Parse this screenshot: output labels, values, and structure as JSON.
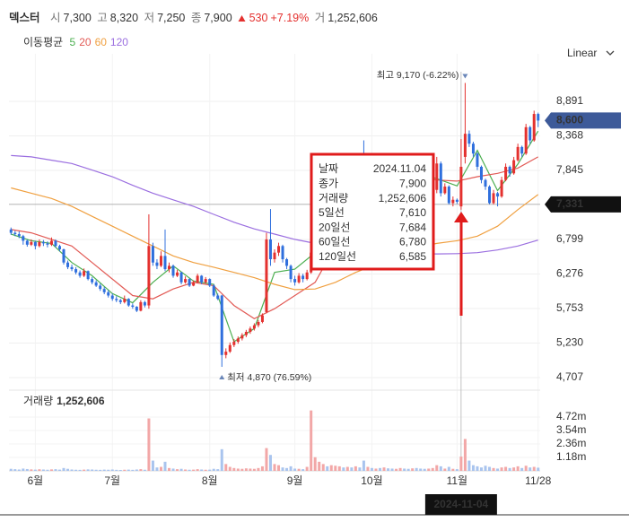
{
  "header": {
    "name": "덱스터",
    "open_label": "시",
    "open": "7,300",
    "high_label": "고",
    "high": "8,320",
    "low_label": "저",
    "low": "7,250",
    "close_label": "종",
    "close": "7,900",
    "change": "530",
    "change_pct": "+7.19%",
    "volume_label": "거",
    "volume": "1,252,606"
  },
  "controls": {
    "scale": "Linear"
  },
  "chart_data": {
    "type": "candlestick",
    "ma_legend_title": "이동평균",
    "up_color": "#e4312f",
    "down_color": "#2f6fdd",
    "vol_up_color": "#f2a7a7",
    "vol_down_color": "#a9c4ee",
    "ylim": [
      4585,
      9611
    ],
    "yticks": [
      {
        "value": 8891,
        "label": "8,891"
      },
      {
        "value": 8368,
        "label": "8,368"
      },
      {
        "value": 7845,
        "label": "7,845"
      },
      {
        "value": 6799,
        "label": "6,799"
      },
      {
        "value": 6276,
        "label": "6,276"
      },
      {
        "value": 5753,
        "label": "5,753"
      },
      {
        "value": 5230,
        "label": "5,230"
      },
      {
        "value": 4707,
        "label": "4,707"
      }
    ],
    "vlim": [
      0,
      7080000
    ],
    "vticks": [
      {
        "value": 4720000,
        "label": "4.72m"
      },
      {
        "value": 3540000,
        "label": "3.54m"
      },
      {
        "value": 2360000,
        "label": "2.36m"
      },
      {
        "value": 1180000,
        "label": "1.18m"
      }
    ],
    "grid": true,
    "categories": [
      null,
      null,
      null,
      null,
      null,
      null,
      "6월",
      null,
      null,
      null,
      null,
      null,
      null,
      null,
      null,
      null,
      null,
      null,
      null,
      null,
      null,
      null,
      null,
      null,
      null,
      "7월",
      null,
      null,
      null,
      null,
      null,
      null,
      null,
      null,
      null,
      null,
      null,
      null,
      null,
      null,
      null,
      null,
      null,
      null,
      null,
      null,
      null,
      null,
      null,
      "8월",
      null,
      null,
      null,
      null,
      null,
      null,
      null,
      null,
      null,
      null,
      null,
      null,
      null,
      null,
      null,
      null,
      null,
      null,
      null,
      null,
      "9월",
      null,
      null,
      null,
      null,
      null,
      null,
      null,
      null,
      null,
      null,
      null,
      null,
      null,
      null,
      null,
      null,
      null,
      null,
      "10월",
      null,
      null,
      null,
      null,
      null,
      null,
      null,
      null,
      null,
      null,
      null,
      null,
      null,
      null,
      null,
      null,
      null,
      null,
      null,
      null,
      "11월",
      null,
      null,
      null,
      null,
      null,
      null,
      null,
      null,
      null,
      null,
      null,
      null,
      null,
      null,
      null,
      null,
      null,
      null,
      null,
      "11/28"
    ],
    "candles": [
      [
        6950,
        6980,
        6870,
        6900
      ],
      [
        6900,
        6930,
        6850,
        6880
      ],
      [
        6880,
        6920,
        6820,
        6850
      ],
      [
        6850,
        6870,
        6720,
        6780
      ],
      [
        6780,
        6800,
        6690,
        6720
      ],
      [
        6720,
        6800,
        6700,
        6760
      ],
      [
        6760,
        6780,
        6650,
        6700
      ],
      [
        6700,
        6800,
        6680,
        6760
      ],
      [
        6760,
        6790,
        6700,
        6740
      ],
      [
        6740,
        6770,
        6680,
        6720
      ],
      [
        6720,
        6830,
        6700,
        6780
      ],
      [
        6780,
        6800,
        6680,
        6700
      ],
      [
        6700,
        6720,
        6620,
        6650
      ],
      [
        6650,
        6660,
        6420,
        6450
      ],
      [
        6450,
        6480,
        6350,
        6380
      ],
      [
        6380,
        6420,
        6320,
        6350
      ],
      [
        6350,
        6380,
        6270,
        6300
      ],
      [
        6300,
        6330,
        6220,
        6250
      ],
      [
        6250,
        6360,
        6230,
        6320
      ],
      [
        6320,
        6330,
        6180,
        6200
      ],
      [
        6200,
        6230,
        6120,
        6150
      ],
      [
        6150,
        6180,
        6080,
        6100
      ],
      [
        6100,
        6130,
        6020,
        6050
      ],
      [
        6050,
        6080,
        5970,
        6000
      ],
      [
        6000,
        6030,
        5920,
        5950
      ],
      [
        5950,
        5980,
        5870,
        5900
      ],
      [
        5900,
        5940,
        5850,
        5880
      ],
      [
        5880,
        5900,
        5820,
        5850
      ],
      [
        5850,
        5950,
        5830,
        5900
      ],
      [
        5900,
        5910,
        5780,
        5800
      ],
      [
        5800,
        5830,
        5750,
        5780
      ],
      [
        5780,
        5790,
        5700,
        5720
      ],
      [
        5720,
        5880,
        5710,
        5850
      ],
      [
        5850,
        5870,
        5770,
        5800
      ],
      [
        5800,
        7180,
        5750,
        6700
      ],
      [
        6700,
        6750,
        6400,
        6450
      ],
      [
        6450,
        6500,
        6350,
        6400
      ],
      [
        6400,
        6620,
        6380,
        6550
      ],
      [
        6550,
        6950,
        6320,
        6350
      ],
      [
        6350,
        6450,
        6300,
        6400
      ],
      [
        6400,
        6420,
        6220,
        6250
      ],
      [
        6250,
        6340,
        6230,
        6300
      ],
      [
        6300,
        6310,
        6120,
        6150
      ],
      [
        6150,
        6240,
        6130,
        6200
      ],
      [
        6200,
        6210,
        6080,
        6100
      ],
      [
        6100,
        6180,
        6090,
        6150
      ],
      [
        6150,
        6280,
        6140,
        6250
      ],
      [
        6250,
        6260,
        6120,
        6150
      ],
      [
        6150,
        6230,
        6130,
        6200
      ],
      [
        6200,
        6210,
        6080,
        6100
      ],
      [
        6100,
        6120,
        5930,
        5950
      ],
      [
        5950,
        5980,
        5880,
        5900
      ],
      [
        5950,
        5960,
        4870,
        5050
      ],
      [
        5050,
        5150,
        5000,
        5100
      ],
      [
        5100,
        5240,
        5080,
        5200
      ],
      [
        5200,
        5290,
        5170,
        5250
      ],
      [
        5250,
        5330,
        5220,
        5300
      ],
      [
        5300,
        5380,
        5270,
        5350
      ],
      [
        5350,
        5430,
        5320,
        5400
      ],
      [
        5400,
        5480,
        5370,
        5450
      ],
      [
        5450,
        5530,
        5420,
        5500
      ],
      [
        5500,
        5580,
        5470,
        5550
      ],
      [
        5550,
        5680,
        5530,
        5650
      ],
      [
        5700,
        6900,
        5680,
        6800
      ],
      [
        6800,
        7260,
        6400,
        6500
      ],
      [
        6500,
        6650,
        6450,
        6600
      ],
      [
        6600,
        6750,
        6550,
        6700
      ],
      [
        6700,
        6720,
        6450,
        6500
      ],
      [
        6500,
        6520,
        6350,
        6400
      ],
      [
        6400,
        6420,
        6150,
        6200
      ],
      [
        6200,
        6250,
        6100,
        6150
      ],
      [
        6150,
        6290,
        6130,
        6250
      ],
      [
        6250,
        6280,
        6150,
        6200
      ],
      [
        6200,
        6340,
        6180,
        6300
      ],
      [
        6300,
        6650,
        6280,
        6600
      ],
      [
        6600,
        6950,
        6580,
        6900
      ],
      [
        6900,
        7150,
        6870,
        7100
      ],
      [
        7100,
        7350,
        7080,
        7300
      ],
      [
        7300,
        7320,
        7150,
        7200
      ],
      [
        7200,
        7450,
        7180,
        7400
      ],
      [
        7400,
        7550,
        7380,
        7500
      ],
      [
        7500,
        7650,
        7480,
        7600
      ],
      [
        7600,
        7620,
        7400,
        7450
      ],
      [
        7450,
        7750,
        7430,
        7700
      ],
      [
        7700,
        7720,
        7600,
        7650
      ],
      [
        7650,
        7850,
        7630,
        7800
      ],
      [
        7800,
        7820,
        7700,
        7750
      ],
      [
        7750,
        8300,
        7560,
        7600
      ],
      [
        7600,
        7750,
        7580,
        7700
      ],
      [
        7700,
        7720,
        7600,
        7650
      ],
      [
        7650,
        7850,
        7630,
        7800
      ],
      [
        7800,
        7820,
        7700,
        7750
      ],
      [
        7750,
        7950,
        7730,
        7900
      ],
      [
        7900,
        7920,
        7800,
        7850
      ],
      [
        7850,
        7870,
        7700,
        7750
      ],
      [
        7750,
        7850,
        7730,
        7800
      ],
      [
        7800,
        7950,
        7780,
        7900
      ],
      [
        7900,
        7920,
        7800,
        7850
      ],
      [
        7850,
        7870,
        7750,
        7800
      ],
      [
        7800,
        7950,
        7780,
        7900
      ],
      [
        7900,
        7920,
        7700,
        7750
      ],
      [
        7750,
        7770,
        7650,
        7700
      ],
      [
        7700,
        7720,
        7600,
        7650
      ],
      [
        7650,
        7750,
        7630,
        7700
      ],
      [
        7700,
        7850,
        7680,
        7800
      ],
      [
        7550,
        8050,
        7500,
        7950
      ],
      [
        7950,
        7980,
        7450,
        7500
      ],
      [
        7500,
        7650,
        7480,
        7600
      ],
      [
        7600,
        7620,
        7330,
        7350
      ],
      [
        7350,
        7450,
        7300,
        7400
      ],
      [
        7400,
        7420,
        7340,
        7370
      ],
      [
        7300,
        8320,
        7250,
        7900
      ],
      [
        8050,
        9170,
        7950,
        8400
      ],
      [
        8400,
        8450,
        8200,
        8250
      ],
      [
        8250,
        8280,
        8050,
        8100
      ],
      [
        8100,
        8120,
        7850,
        7900
      ],
      [
        7900,
        7920,
        7650,
        7700
      ],
      [
        7700,
        7720,
        7550,
        7600
      ],
      [
        7600,
        7620,
        7335,
        7350
      ],
      [
        7350,
        7550,
        7330,
        7500
      ],
      [
        7500,
        7520,
        7300,
        7450
      ],
      [
        7450,
        7750,
        7430,
        7700
      ],
      [
        7700,
        7950,
        7680,
        7900
      ],
      [
        7900,
        7920,
        7750,
        7800
      ],
      [
        7800,
        8050,
        7780,
        8000
      ],
      [
        8000,
        8250,
        7980,
        8200
      ],
      [
        8200,
        8220,
        8050,
        8100
      ],
      [
        8100,
        8550,
        8080,
        8500
      ],
      [
        8500,
        8520,
        8250,
        8300
      ],
      [
        8300,
        8750,
        8280,
        8700
      ],
      [
        8700,
        8720,
        8500,
        8600
      ]
    ],
    "volume": [
      180000,
      150000,
      120000,
      200000,
      160000,
      130000,
      110000,
      140000,
      120000,
      100000,
      130000,
      150000,
      110000,
      250000,
      180000,
      120000,
      100000,
      90000,
      110000,
      130000,
      120000,
      100000,
      90000,
      110000,
      100000,
      120000,
      90000,
      80000,
      100000,
      110000,
      90000,
      120000,
      150000,
      100000,
      4600000,
      900000,
      300000,
      350000,
      800000,
      250000,
      200000,
      150000,
      180000,
      120000,
      100000,
      110000,
      150000,
      120000,
      100000,
      110000,
      180000,
      150000,
      1900000,
      600000,
      350000,
      250000,
      200000,
      180000,
      220000,
      200000,
      180000,
      250000,
      400000,
      2000000,
      1400000,
      600000,
      500000,
      300000,
      250000,
      400000,
      200000,
      180000,
      150000,
      350000,
      5300000,
      1200000,
      800000,
      600000,
      400000,
      500000,
      450000,
      400000,
      300000,
      350000,
      300000,
      400000,
      300000,
      900000,
      350000,
      250000,
      200000,
      250000,
      300000,
      220000,
      200000,
      180000,
      250000,
      200000,
      180000,
      220000,
      250000,
      200000,
      180000,
      200000,
      250000,
      500000,
      400000,
      200000,
      350000,
      180000,
      150000,
      1252606,
      2800000,
      900000,
      500000,
      400000,
      300000,
      450000,
      350000,
      250000,
      200000,
      300000,
      350000,
      250000,
      300000,
      400000,
      250000,
      450000,
      300000,
      350000,
      280000
    ],
    "ma_x": [
      0,
      5,
      10,
      15,
      20,
      25,
      30,
      35,
      40,
      45,
      50,
      55,
      60,
      65,
      70,
      75,
      80,
      85,
      90,
      95,
      100,
      105,
      110,
      115,
      120,
      125,
      130
    ],
    "ma_series": [
      {
        "name": "5",
        "color": "#4caf50",
        "values": [
          6880,
          6780,
          6740,
          6450,
          6250,
          5980,
          5840,
          6150,
          6400,
          6170,
          6120,
          5250,
          5450,
          6300,
          6350,
          6600,
          7350,
          7680,
          7700,
          7830,
          7820,
          7720,
          7610,
          8150,
          7540,
          7940,
          8440
        ]
      },
      {
        "name": "20",
        "color": "#e25a55",
        "values": [
          6950,
          6900,
          6800,
          6700,
          6450,
          6200,
          5950,
          5900,
          6050,
          6150,
          6100,
          5800,
          5600,
          5750,
          5950,
          6150,
          6700,
          7200,
          7500,
          7650,
          7750,
          7700,
          7684,
          7750,
          7800,
          7880,
          8050
        ]
      },
      {
        "name": "60",
        "color": "#f0a040",
        "values": [
          7580,
          7500,
          7420,
          7300,
          7150,
          7000,
          6850,
          6700,
          6550,
          6450,
          6380,
          6300,
          6220,
          6120,
          6040,
          6050,
          6150,
          6300,
          6420,
          6550,
          6680,
          6740,
          6780,
          6850,
          7000,
          7250,
          7480
        ]
      },
      {
        "name": "120",
        "color": "#9b6fe0",
        "values": [
          8070,
          8050,
          8000,
          7950,
          7850,
          7750,
          7620,
          7500,
          7400,
          7300,
          7180,
          7060,
          6960,
          6880,
          6800,
          6740,
          6690,
          6650,
          6620,
          6600,
          6585,
          6580,
          6585,
          6600,
          6640,
          6700,
          6790
        ]
      }
    ],
    "max_label": "최고 9,170 (-6.22%)",
    "min_label": "최저 4,870 (76.59%)",
    "last_price": {
      "value": 8600,
      "label": "8,600"
    },
    "crosshair_price": {
      "value": 7331,
      "label": "7,331"
    },
    "crosshair_date": "2024-11-04",
    "volume_title": "거래량",
    "volume_title_value": "1,252,606",
    "tooltip": [
      {
        "label": "날짜",
        "value": "2024.11.04",
        "color": "#222222"
      },
      {
        "label": "종가",
        "value": "7,900",
        "color": "#e4312f"
      },
      {
        "label": "거래량",
        "value": "1,252,606",
        "color": "#222222"
      },
      {
        "label": "5일선",
        "value": "7,610",
        "color": "#3aa64a"
      },
      {
        "label": "20일선",
        "value": "7,684",
        "color": "#e25a55"
      },
      {
        "label": "60일선",
        "value": "6,780",
        "color": "#ee9a3a"
      },
      {
        "label": "120일선",
        "value": "6,585",
        "color": "#9b6fe0"
      }
    ]
  }
}
